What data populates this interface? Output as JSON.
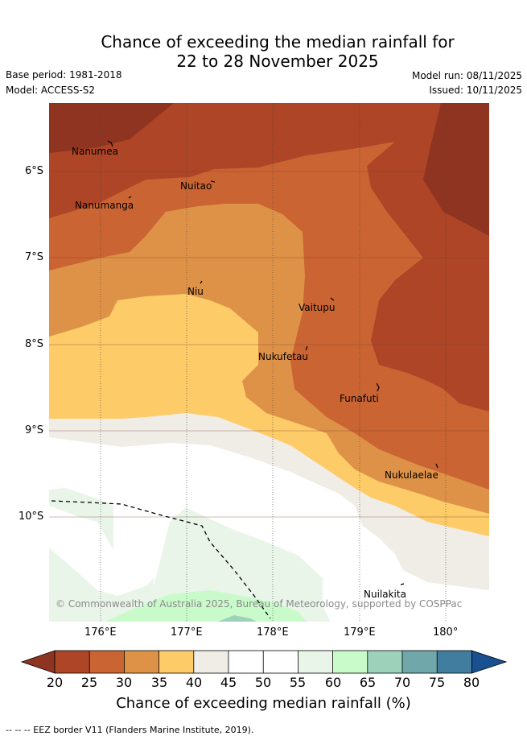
{
  "title": {
    "line1": "Chance of exceeding the median rainfall for",
    "line2": "22 to 28 November 2025"
  },
  "meta": {
    "base_period": "Base period: 1981-2018",
    "model": "Model: ACCESS-S2",
    "model_run": "Model run: 08/11/2025",
    "issued": "Issued: 10/11/2025"
  },
  "axes": {
    "lat_ticks": [
      "6°S",
      "7°S",
      "8°S",
      "9°S",
      "10°S"
    ],
    "lon_ticks": [
      "176°E",
      "177°E",
      "178°E",
      "179°E",
      "180°"
    ]
  },
  "places": [
    {
      "name": "Nanumea"
    },
    {
      "name": "Nuitao"
    },
    {
      "name": "Nanumanga"
    },
    {
      "name": "Niu"
    },
    {
      "name": "Vaitupu"
    },
    {
      "name": "Nukufetau"
    },
    {
      "name": "Funafuti"
    },
    {
      "name": "Nukulaelae"
    },
    {
      "name": "Nuilakita"
    }
  ],
  "copyright": "© Commonwealth of Australia 2025, Bureau of Meteorology, supported by COSPPac",
  "colorbar": {
    "ticks": [
      "20",
      "25",
      "30",
      "35",
      "40",
      "45",
      "50",
      "55",
      "60",
      "65",
      "70",
      "75",
      "80"
    ],
    "label": "Chance of exceeding median rainfall (%)",
    "colors": {
      "below20": "#8f3420",
      "c20_25": "#ad4526",
      "c25_30": "#ca6432",
      "c30_35": "#de9247",
      "c35_40": "#fdcb67",
      "c40_45": "#f0ece6",
      "c45_50": "#ffffff",
      "c50_55": "#ffffff",
      "c55_60": "#e9f5e9",
      "c60_65": "#c9fbca",
      "c65_70": "#9dd1ba",
      "c70_75": "#70a7aa",
      "c75_80": "#417d9e",
      "above80": "#19508f"
    }
  },
  "footer": "-- -- -- EEZ border V11 (Flanders Marine Institute, 2019)."
}
